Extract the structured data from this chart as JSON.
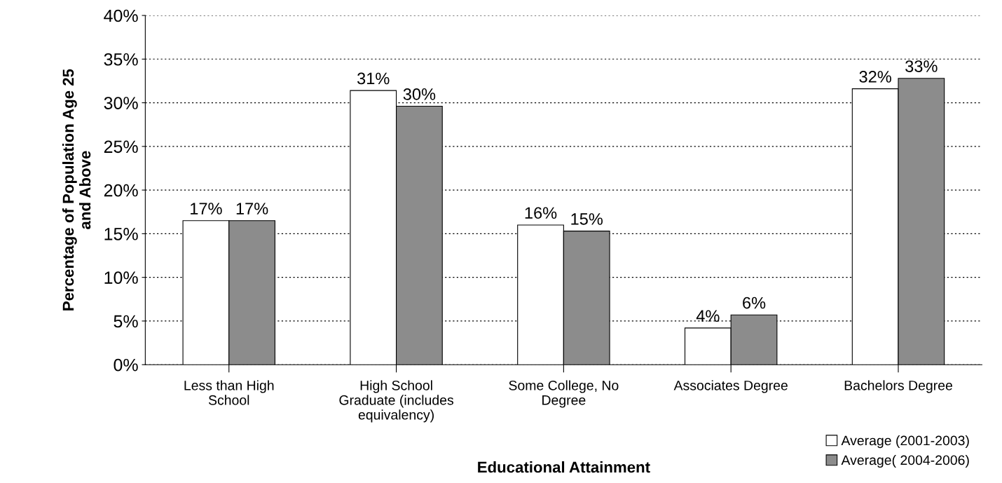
{
  "chart_data": {
    "type": "bar",
    "xlabel": "Educational Attainment",
    "ylabel": "Percentage of Population Age 25\nand Above",
    "categories": [
      "Less than High\nSchool",
      "High School\nGraduate (includes\nequivalency)",
      "Some College, No\nDegree",
      "Associates Degree",
      "Bachelors Degree"
    ],
    "series": [
      {
        "name": "Average (2001-2003)",
        "color": "#ffffff",
        "values": [
          16.5,
          31.4,
          16.0,
          4.2,
          31.6
        ],
        "value_labels": [
          "17%",
          "31%",
          "16%",
          "4%",
          "32%"
        ]
      },
      {
        "name": "Average( 2004-2006)",
        "color": "#8c8c8c",
        "values": [
          16.5,
          29.6,
          15.3,
          5.7,
          32.8
        ],
        "value_labels": [
          "17%",
          "30%",
          "15%",
          "6%",
          "33%"
        ]
      }
    ],
    "ylim": [
      0,
      40
    ],
    "yticks": [
      {
        "value": 0,
        "label": "0%"
      },
      {
        "value": 5,
        "label": "5%"
      },
      {
        "value": 10,
        "label": "10%"
      },
      {
        "value": 15,
        "label": "15%"
      },
      {
        "value": 20,
        "label": "20%"
      },
      {
        "value": 25,
        "label": "25%"
      },
      {
        "value": 30,
        "label": "30%"
      },
      {
        "value": 35,
        "label": "35%"
      },
      {
        "value": 40,
        "label": "40%"
      }
    ],
    "grid": "y",
    "legend": "bottom right"
  }
}
